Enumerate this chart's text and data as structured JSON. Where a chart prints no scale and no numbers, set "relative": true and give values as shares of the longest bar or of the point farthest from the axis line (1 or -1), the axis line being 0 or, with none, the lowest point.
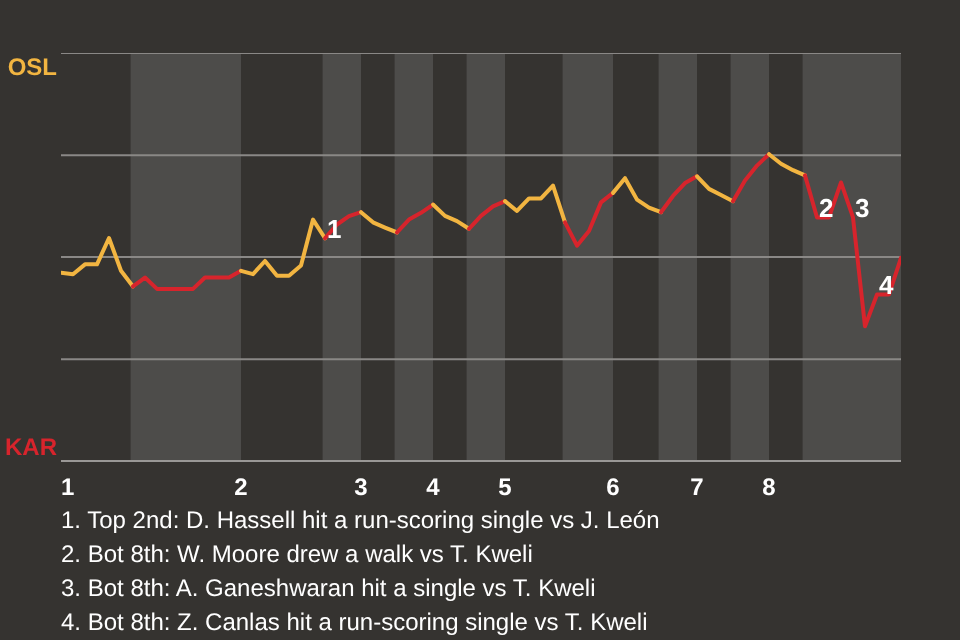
{
  "chart_data": {
    "type": "line",
    "relative": true,
    "categories": [
      "1",
      null,
      null,
      null,
      null,
      null,
      null,
      null,
      null,
      null,
      null,
      null,
      null,
      null,
      null,
      "2",
      null,
      null,
      null,
      null,
      null,
      null,
      null,
      null,
      null,
      "3",
      null,
      null,
      null,
      null,
      null,
      "4",
      null,
      null,
      null,
      null,
      null,
      "5",
      null,
      null,
      null,
      null,
      null,
      null,
      null,
      null,
      "6",
      null,
      null,
      null,
      null,
      null,
      null,
      "7",
      null,
      null,
      null,
      null,
      null,
      "8",
      null,
      null,
      null,
      null,
      null,
      null,
      null,
      null,
      null,
      null,
      null
    ],
    "ref_lines": [
      {
        "axis": "y",
        "value": 0.332
      },
      {
        "axis": "y",
        "value": 0.665
      },
      {
        "axis": "y",
        "value": 0.997
      },
      {
        "axis": "y",
        "value": 1.33
      }
    ],
    "series": [
      {
        "name": "OSL",
        "color": "#f2b541",
        "values": [
          0.614,
          0.609,
          0.641,
          0.641,
          0.727,
          0.62,
          0.569,
          null,
          null,
          null,
          null,
          null,
          null,
          null,
          null,
          null,
          null,
          null,
          null,
          null,
          null,
          null,
          null,
          null,
          null,
          null,
          null,
          null,
          null,
          null,
          null,
          null,
          null,
          null,
          null,
          null,
          null,
          null,
          null,
          null,
          null,
          null,
          null,
          null,
          null,
          null,
          null,
          null,
          null,
          null,
          null,
          null,
          null,
          null,
          null,
          null,
          null,
          null,
          null,
          null,
          null,
          null,
          null,
          null,
          null,
          null,
          null,
          null,
          null,
          null,
          null
        ]
      },
      {
        "name": "KAR",
        "color": "#d7242c",
        "values": [
          null,
          null,
          null,
          null,
          null,
          null,
          0.569,
          0.598,
          0.561,
          0.561,
          0.561,
          0.561,
          0.598,
          0.598,
          0.598,
          0.62,
          null,
          null,
          null,
          null,
          null,
          null,
          null,
          null,
          null,
          null,
          null,
          null,
          null,
          null,
          null,
          null,
          null,
          null,
          null,
          null,
          null,
          null,
          null,
          null,
          null,
          null,
          null,
          null,
          null,
          null,
          null,
          null,
          null,
          null,
          null,
          null,
          null,
          null,
          null,
          null,
          null,
          null,
          null,
          null,
          null,
          null,
          null,
          null,
          null,
          null,
          null,
          null,
          null,
          null,
          null
        ]
      },
      {
        "color": "#f2b541",
        "values": [
          null,
          null,
          null,
          null,
          null,
          null,
          null,
          null,
          null,
          null,
          null,
          null,
          null,
          null,
          null,
          0.62,
          0.609,
          0.652,
          0.604,
          0.604,
          0.637,
          0.787,
          0.726,
          null,
          null,
          null,
          null,
          null,
          null,
          null,
          null,
          null,
          null,
          null,
          null,
          null,
          null,
          null,
          null,
          null,
          null,
          null,
          null,
          null,
          null,
          null,
          null,
          null,
          null,
          null,
          null,
          null,
          null,
          null,
          null,
          null,
          null,
          null,
          null,
          null,
          null,
          null,
          null,
          null,
          null,
          null,
          null,
          null,
          null,
          null,
          null
        ]
      },
      {
        "color": "#d7242c",
        "values": [
          null,
          null,
          null,
          null,
          null,
          null,
          null,
          null,
          null,
          null,
          null,
          null,
          null,
          null,
          null,
          null,
          null,
          null,
          null,
          null,
          null,
          null,
          0.726,
          0.771,
          0.798,
          0.811,
          null,
          null,
          null,
          null,
          null,
          null,
          null,
          null,
          null,
          null,
          null,
          null,
          null,
          null,
          null,
          null,
          null,
          null,
          null,
          null,
          null,
          null,
          null,
          null,
          null,
          null,
          null,
          null,
          null,
          null,
          null,
          null,
          null,
          null,
          null,
          null,
          null,
          null,
          null,
          null,
          null,
          null,
          null,
          null,
          null
        ]
      },
      {
        "color": "#f2b541",
        "values": [
          null,
          null,
          null,
          null,
          null,
          null,
          null,
          null,
          null,
          null,
          null,
          null,
          null,
          null,
          null,
          null,
          null,
          null,
          null,
          null,
          null,
          null,
          null,
          null,
          null,
          0.811,
          0.778,
          0.761,
          0.745,
          null,
          null,
          null,
          null,
          null,
          null,
          null,
          null,
          null,
          null,
          null,
          null,
          null,
          null,
          null,
          null,
          null,
          null,
          null,
          null,
          null,
          null,
          null,
          null,
          null,
          null,
          null,
          null,
          null,
          null,
          null,
          null,
          null,
          null,
          null,
          null,
          null,
          null,
          null,
          null,
          null,
          null
        ]
      },
      {
        "color": "#d7242c",
        "values": [
          null,
          null,
          null,
          null,
          null,
          null,
          null,
          null,
          null,
          null,
          null,
          null,
          null,
          null,
          null,
          null,
          null,
          null,
          null,
          null,
          null,
          null,
          null,
          null,
          null,
          null,
          null,
          null,
          0.745,
          0.787,
          0.809,
          0.836,
          null,
          null,
          null,
          null,
          null,
          null,
          null,
          null,
          null,
          null,
          null,
          null,
          null,
          null,
          null,
          null,
          null,
          null,
          null,
          null,
          null,
          null,
          null,
          null,
          null,
          null,
          null,
          null,
          null,
          null,
          null,
          null,
          null,
          null,
          null,
          null,
          null,
          null,
          null
        ]
      },
      {
        "color": "#f2b541",
        "values": [
          null,
          null,
          null,
          null,
          null,
          null,
          null,
          null,
          null,
          null,
          null,
          null,
          null,
          null,
          null,
          null,
          null,
          null,
          null,
          null,
          null,
          null,
          null,
          null,
          null,
          null,
          null,
          null,
          null,
          null,
          null,
          0.836,
          0.799,
          0.782,
          0.757,
          null,
          null,
          null,
          null,
          null,
          null,
          null,
          null,
          null,
          null,
          null,
          null,
          null,
          null,
          null,
          null,
          null,
          null,
          null,
          null,
          null,
          null,
          null,
          null,
          null,
          null,
          null,
          null,
          null,
          null,
          null,
          null,
          null,
          null,
          null,
          null
        ]
      },
      {
        "color": "#d7242c",
        "values": [
          null,
          null,
          null,
          null,
          null,
          null,
          null,
          null,
          null,
          null,
          null,
          null,
          null,
          null,
          null,
          null,
          null,
          null,
          null,
          null,
          null,
          null,
          null,
          null,
          null,
          null,
          null,
          null,
          null,
          null,
          null,
          null,
          null,
          null,
          0.757,
          0.799,
          0.83,
          0.847,
          null,
          null,
          null,
          null,
          null,
          null,
          null,
          null,
          null,
          null,
          null,
          null,
          null,
          null,
          null,
          null,
          null,
          null,
          null,
          null,
          null,
          null,
          null,
          null,
          null,
          null,
          null,
          null,
          null,
          null,
          null,
          null,
          null
        ]
      },
      {
        "color": "#f2b541",
        "values": [
          null,
          null,
          null,
          null,
          null,
          null,
          null,
          null,
          null,
          null,
          null,
          null,
          null,
          null,
          null,
          null,
          null,
          null,
          null,
          null,
          null,
          null,
          null,
          null,
          null,
          null,
          null,
          null,
          null,
          null,
          null,
          null,
          null,
          null,
          null,
          null,
          null,
          0.847,
          0.815,
          0.856,
          0.856,
          0.898,
          0.778,
          null,
          null,
          null,
          null,
          null,
          null,
          null,
          null,
          null,
          null,
          null,
          null,
          null,
          null,
          null,
          null,
          null,
          null,
          null,
          null,
          null,
          null,
          null,
          null,
          null,
          null,
          null,
          null
        ]
      },
      {
        "color": "#d7242c",
        "values": [
          null,
          null,
          null,
          null,
          null,
          null,
          null,
          null,
          null,
          null,
          null,
          null,
          null,
          null,
          null,
          null,
          null,
          null,
          null,
          null,
          null,
          null,
          null,
          null,
          null,
          null,
          null,
          null,
          null,
          null,
          null,
          null,
          null,
          null,
          null,
          null,
          null,
          null,
          null,
          null,
          null,
          null,
          0.778,
          0.702,
          0.75,
          0.843,
          0.874,
          null,
          null,
          null,
          null,
          null,
          null,
          null,
          null,
          null,
          null,
          null,
          null,
          null,
          null,
          null,
          null,
          null,
          null,
          null,
          null,
          null,
          null,
          null,
          null
        ]
      },
      {
        "color": "#f2b541",
        "values": [
          null,
          null,
          null,
          null,
          null,
          null,
          null,
          null,
          null,
          null,
          null,
          null,
          null,
          null,
          null,
          null,
          null,
          null,
          null,
          null,
          null,
          null,
          null,
          null,
          null,
          null,
          null,
          null,
          null,
          null,
          null,
          null,
          null,
          null,
          null,
          null,
          null,
          null,
          null,
          null,
          null,
          null,
          null,
          null,
          null,
          null,
          0.874,
          0.922,
          0.852,
          0.826,
          0.811,
          null,
          null,
          null,
          null,
          null,
          null,
          null,
          null,
          null,
          null,
          null,
          null,
          null,
          null,
          null,
          null,
          null,
          null,
          null,
          null
        ]
      },
      {
        "color": "#d7242c",
        "values": [
          null,
          null,
          null,
          null,
          null,
          null,
          null,
          null,
          null,
          null,
          null,
          null,
          null,
          null,
          null,
          null,
          null,
          null,
          null,
          null,
          null,
          null,
          null,
          null,
          null,
          null,
          null,
          null,
          null,
          null,
          null,
          null,
          null,
          null,
          null,
          null,
          null,
          null,
          null,
          null,
          null,
          null,
          null,
          null,
          null,
          null,
          null,
          null,
          null,
          null,
          0.811,
          0.864,
          0.906,
          0.928,
          null,
          null,
          null,
          null,
          null,
          null,
          null,
          null,
          null,
          null,
          null,
          null,
          null,
          null,
          null,
          null,
          null
        ]
      },
      {
        "color": "#f2b541",
        "values": [
          null,
          null,
          null,
          null,
          null,
          null,
          null,
          null,
          null,
          null,
          null,
          null,
          null,
          null,
          null,
          null,
          null,
          null,
          null,
          null,
          null,
          null,
          null,
          null,
          null,
          null,
          null,
          null,
          null,
          null,
          null,
          null,
          null,
          null,
          null,
          null,
          null,
          null,
          null,
          null,
          null,
          null,
          null,
          null,
          null,
          null,
          null,
          null,
          null,
          null,
          null,
          null,
          null,
          0.928,
          0.887,
          0.867,
          0.847,
          null,
          null,
          null,
          null,
          null,
          null,
          null,
          null,
          null,
          null,
          null,
          null,
          null,
          null
        ]
      },
      {
        "color": "#d7242c",
        "values": [
          null,
          null,
          null,
          null,
          null,
          null,
          null,
          null,
          null,
          null,
          null,
          null,
          null,
          null,
          null,
          null,
          null,
          null,
          null,
          null,
          null,
          null,
          null,
          null,
          null,
          null,
          null,
          null,
          null,
          null,
          null,
          null,
          null,
          null,
          null,
          null,
          null,
          null,
          null,
          null,
          null,
          null,
          null,
          null,
          null,
          null,
          null,
          null,
          null,
          null,
          null,
          null,
          null,
          null,
          null,
          null,
          0.847,
          0.914,
          0.963,
          1,
          null,
          null,
          null,
          null,
          null,
          null,
          null,
          null,
          null,
          null,
          null
        ]
      },
      {
        "color": "#f2b541",
        "values": [
          null,
          null,
          null,
          null,
          null,
          null,
          null,
          null,
          null,
          null,
          null,
          null,
          null,
          null,
          null,
          null,
          null,
          null,
          null,
          null,
          null,
          null,
          null,
          null,
          null,
          null,
          null,
          null,
          null,
          null,
          null,
          null,
          null,
          null,
          null,
          null,
          null,
          null,
          null,
          null,
          null,
          null,
          null,
          null,
          null,
          null,
          null,
          null,
          null,
          null,
          null,
          null,
          null,
          null,
          null,
          null,
          null,
          null,
          null,
          1,
          0.969,
          0.948,
          0.931,
          null,
          null,
          null,
          null,
          null,
          null,
          null,
          null
        ]
      },
      {
        "color": "#d7242c",
        "values": [
          null,
          null,
          null,
          null,
          null,
          null,
          null,
          null,
          null,
          null,
          null,
          null,
          null,
          null,
          null,
          null,
          null,
          null,
          null,
          null,
          null,
          null,
          null,
          null,
          null,
          null,
          null,
          null,
          null,
          null,
          null,
          null,
          null,
          null,
          null,
          null,
          null,
          null,
          null,
          null,
          null,
          null,
          null,
          null,
          null,
          null,
          null,
          null,
          null,
          null,
          null,
          null,
          null,
          null,
          null,
          null,
          null,
          null,
          null,
          null,
          null,
          null,
          0.931,
          0.794,
          0.794,
          0.908,
          0.794,
          0.439,
          0.543,
          0.543,
          0.662
        ]
      }
    ],
    "annotations": [
      {
        "text": "1",
        "y": 0.726
      },
      {
        "text": "2",
        "y": 0.794
      },
      {
        "text": "3",
        "y": 0.794
      },
      {
        "text": "4",
        "y": 0.543
      },
      "1. Top 2nd: D. Hassell hit a run-scoring single vs J. León",
      "2. Bot 8th: W. Moore drew a walk vs T. Kweli",
      "3. Bot 8th: A. Ganeshwaran hit a single vs T. Kweli",
      "4. Bot 8th: Z. Canlas hit a run-scoring single vs T. Kweli"
    ]
  }
}
